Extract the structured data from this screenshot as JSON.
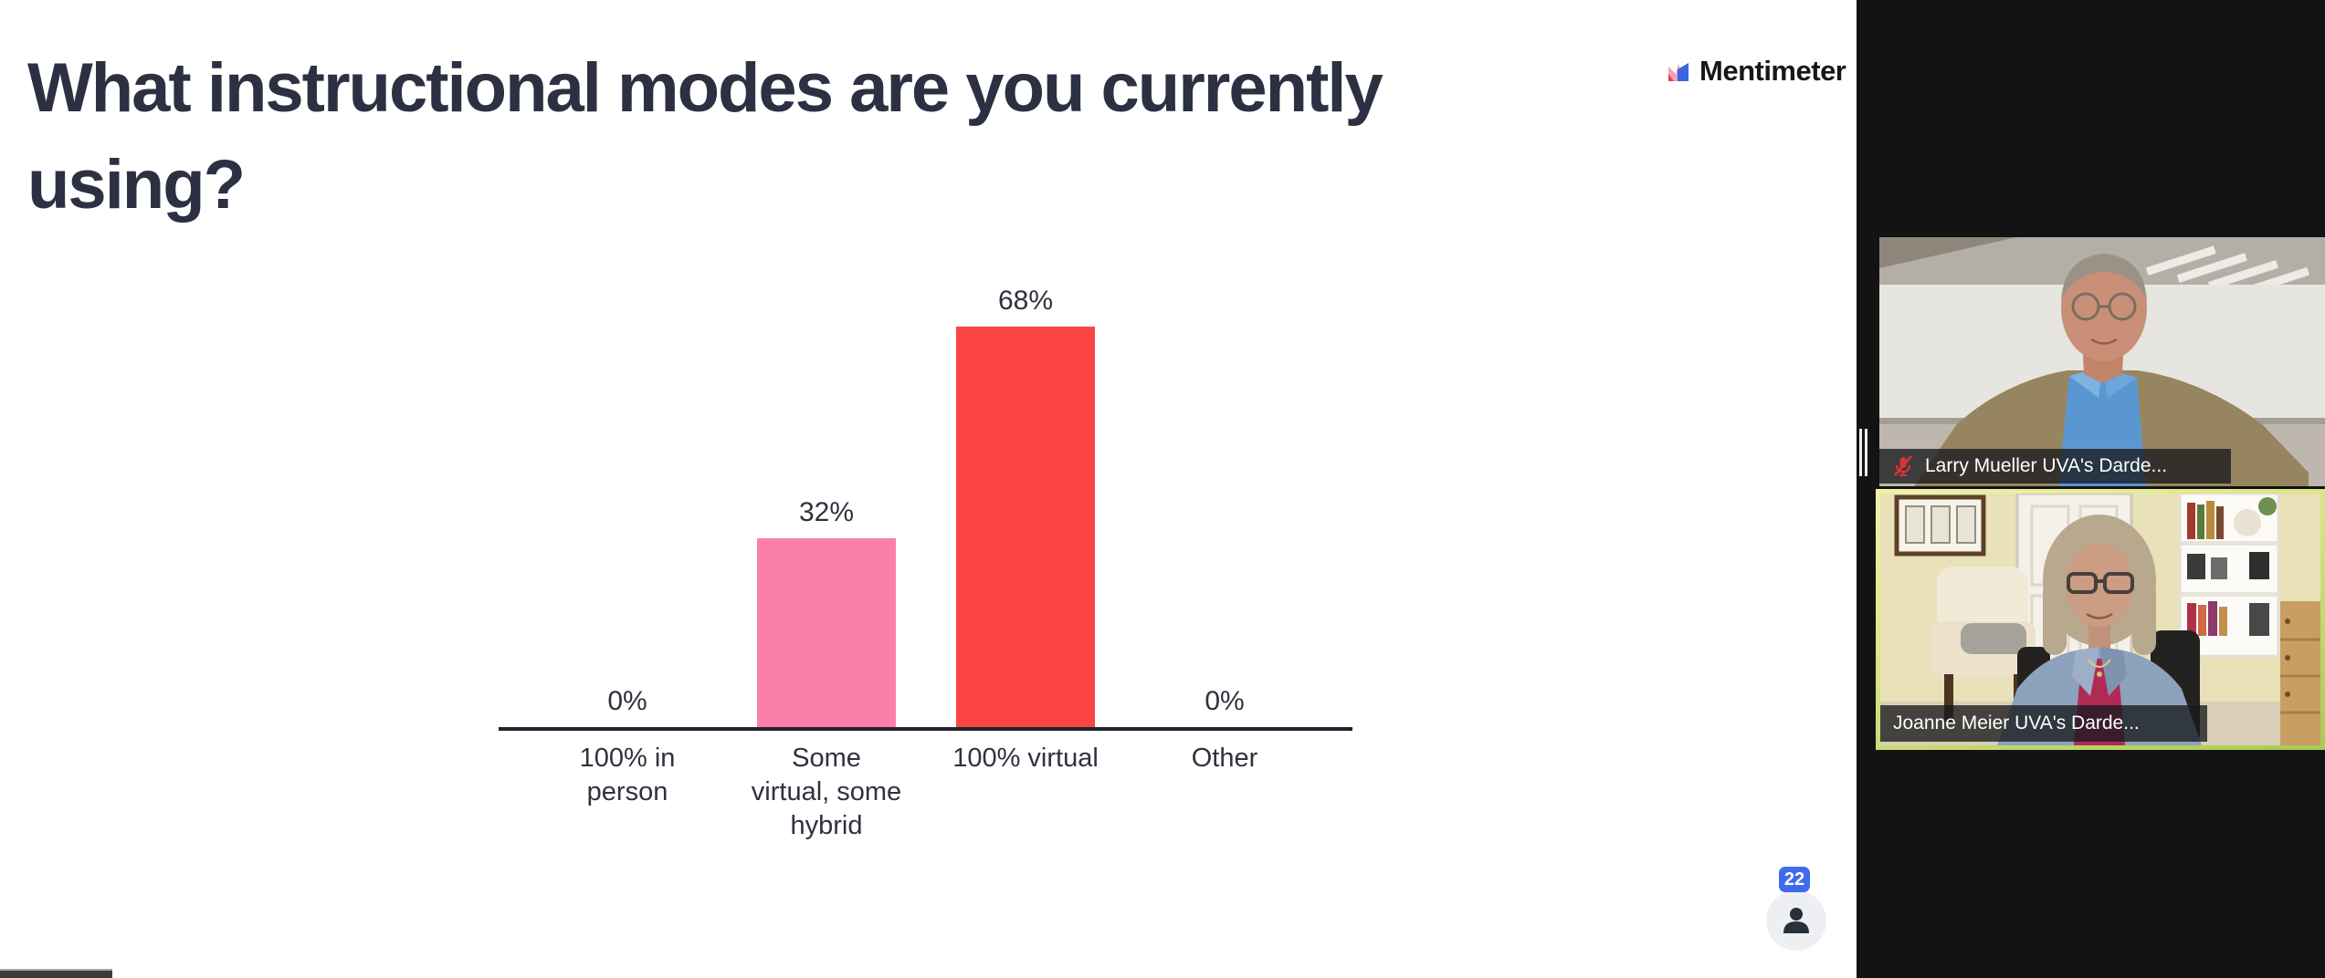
{
  "slide": {
    "title": "What instructional modes are you currently using?",
    "title_lines": [
      "What instructional modes are you currently",
      "using?"
    ],
    "logo_text": "Mentimeter"
  },
  "chart_data": {
    "type": "bar",
    "title": "What instructional modes are you currently using?",
    "categories": [
      "100% in person",
      "Some virtual, some hybrid",
      "100% virtual",
      "Other"
    ],
    "values": [
      0,
      32,
      68,
      0
    ],
    "value_labels": [
      "0%",
      "32%",
      "68%",
      "0%"
    ],
    "value_suffix": "%",
    "yaxis_visible": false,
    "grid": false,
    "legend": false,
    "bars": [
      {
        "label": "100% in person",
        "label_display": "100% in\nperson",
        "value": 0,
        "value_label": "0%",
        "color": null
      },
      {
        "label": "Some virtual, some hybrid",
        "label_display": "Some\nvirtual, some\nhybrid",
        "value": 32,
        "value_label": "32%",
        "color": "#fb7fa9"
      },
      {
        "label": "100% virtual",
        "label_display": "100% virtual",
        "value": 68,
        "value_label": "68%",
        "color": "#fb4545"
      },
      {
        "label": "Other",
        "label_display": "Other",
        "value": 0,
        "value_label": "0%",
        "color": null
      }
    ]
  },
  "participants": {
    "count": "22",
    "icon": "person-icon"
  },
  "videos": [
    {
      "name_label": "Larry Mueller UVA's Darde...",
      "muted": true,
      "active_speaker": false
    },
    {
      "name_label": "Joanne Meier UVA's Darde...",
      "muted": false,
      "active_speaker": true
    }
  ],
  "colors": {
    "bar_pink": "#fb7fa9",
    "bar_red": "#fb4545",
    "title_text": "#2c3042",
    "axis": "#20222e",
    "participant_badge_blue": "#3f6af0",
    "active_speaker_border": "#cfe07a",
    "muted_mic_red": "#d83232",
    "panel_black": "#131313",
    "name_bar_bg": "rgba(24,26,30,0.78)"
  }
}
